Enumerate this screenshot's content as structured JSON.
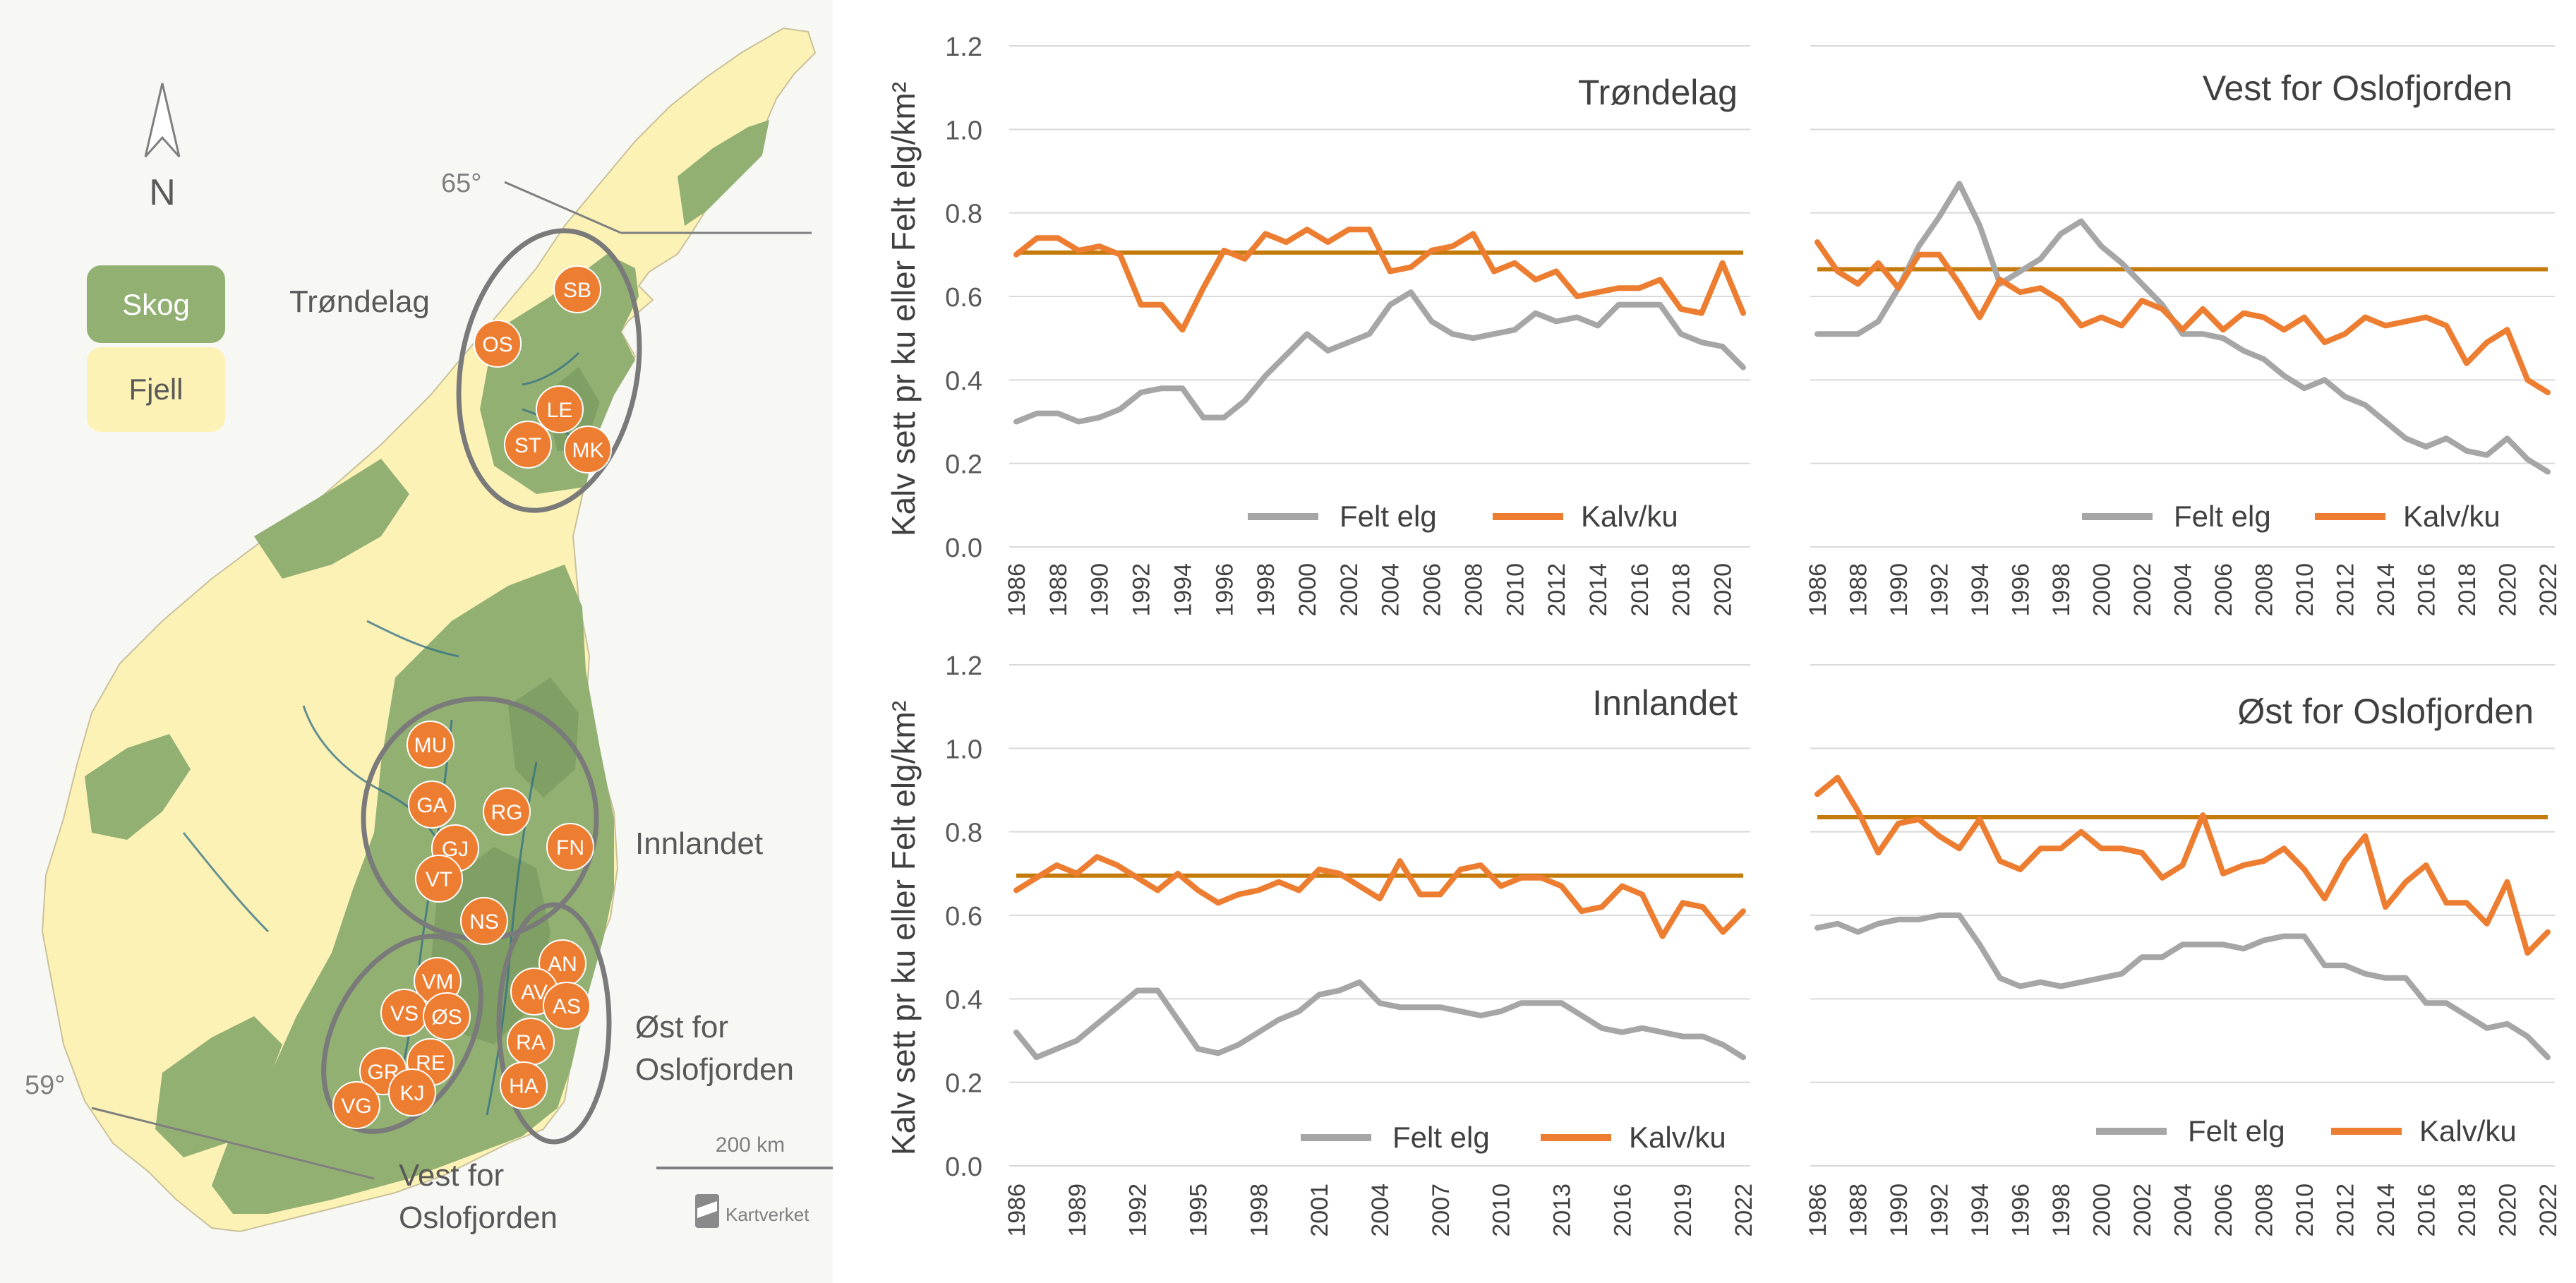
{
  "colors": {
    "felt": "#a6a6a6",
    "kalv": "#ed7d31",
    "ref": "#c57b0b",
    "forest": "#93b073",
    "forest_dark": "#6f9257",
    "mountain": "#fdf2b6",
    "marker": "#ed7d31",
    "ring": "#7a7a7a",
    "text": "#595959",
    "river": "#2f6f86"
  },
  "map": {
    "north_label": "N",
    "legend": [
      {
        "label": "Skog",
        "color": "#93b073"
      },
      {
        "label": "Fjell",
        "color": "#fdf2b6"
      }
    ],
    "lat_labels": [
      "65°",
      "59°"
    ],
    "region_labels": {
      "trondelag": "Trøndelag",
      "innlandet": "Innlandet",
      "ost": [
        "Øst for",
        "Oslofjorden"
      ],
      "vest": [
        "Vest for",
        "Oslofjorden"
      ]
    },
    "scale_label": "200 km",
    "credit": "Kartverket",
    "markers": [
      "SB",
      "OS",
      "LE",
      "ST",
      "MK",
      "MU",
      "GA",
      "RG",
      "GJ",
      "FN",
      "VT",
      "NS",
      "VM",
      "AN",
      "AV",
      "AS",
      "VS",
      "ØS",
      "RE",
      "GR",
      "KJ",
      "VG",
      "RA",
      "HA"
    ]
  },
  "chart_data": [
    {
      "type": "line",
      "id": "trondelag",
      "title": "Trøndelag",
      "ylabel": "Kalv sett pr ku eller Felt elg/km²",
      "ylim": [
        0,
        1.2
      ],
      "yticks": [
        "0.0",
        "0.2",
        "0.4",
        "0.6",
        "0.8",
        "1.0",
        "1.2"
      ],
      "xlim": [
        1986,
        2021
      ],
      "xticks": [
        "1986",
        "1988",
        "1990",
        "1992",
        "1994",
        "1996",
        "1998",
        "2000",
        "2002",
        "2004",
        "2006",
        "2008",
        "2010",
        "2012",
        "2014",
        "2016",
        "2018",
        "2020"
      ],
      "x": [
        1986,
        1987,
        1988,
        1989,
        1990,
        1991,
        1992,
        1993,
        1994,
        1995,
        1996,
        1997,
        1998,
        1999,
        2000,
        2001,
        2002,
        2003,
        2004,
        2005,
        2006,
        2007,
        2008,
        2009,
        2010,
        2011,
        2012,
        2013,
        2014,
        2015,
        2016,
        2017,
        2018,
        2019,
        2020,
        2021
      ],
      "reference": 0.705,
      "series": [
        {
          "name": "Felt elg",
          "values": [
            0.3,
            0.32,
            0.32,
            0.3,
            0.31,
            0.33,
            0.37,
            0.38,
            0.38,
            0.31,
            0.31,
            0.35,
            0.41,
            0.46,
            0.51,
            0.47,
            0.49,
            0.51,
            0.58,
            0.61,
            0.54,
            0.51,
            0.5,
            0.51,
            0.52,
            0.56,
            0.54,
            0.55,
            0.53,
            0.58,
            0.58,
            0.58,
            0.51,
            0.49,
            0.48,
            0.43
          ]
        },
        {
          "name": "Kalv/ku",
          "values": [
            0.7,
            0.74,
            0.74,
            0.71,
            0.72,
            0.7,
            0.58,
            0.58,
            0.52,
            0.62,
            0.71,
            0.69,
            0.75,
            0.73,
            0.76,
            0.73,
            0.76,
            0.76,
            0.66,
            0.67,
            0.71,
            0.72,
            0.75,
            0.66,
            0.68,
            0.64,
            0.66,
            0.6,
            0.61,
            0.62,
            0.62,
            0.64,
            0.57,
            0.56,
            0.68,
            0.56
          ]
        }
      ]
    },
    {
      "type": "line",
      "id": "vest",
      "title": "Vest for Oslofjorden",
      "ylim": [
        0,
        1.2
      ],
      "xlim": [
        1986,
        2022
      ],
      "xticks": [
        "1986",
        "1988",
        "1990",
        "1992",
        "1994",
        "1996",
        "1998",
        "2000",
        "2002",
        "2004",
        "2006",
        "2008",
        "2010",
        "2012",
        "2014",
        "2016",
        "2018",
        "2020",
        "2022"
      ],
      "x": [
        1986,
        1987,
        1988,
        1989,
        1990,
        1991,
        1992,
        1993,
        1994,
        1995,
        1996,
        1997,
        1998,
        1999,
        2000,
        2001,
        2002,
        2003,
        2004,
        2005,
        2006,
        2007,
        2008,
        2009,
        2010,
        2011,
        2012,
        2013,
        2014,
        2015,
        2016,
        2017,
        2018,
        2019,
        2020,
        2021,
        2022
      ],
      "reference": 0.665,
      "series": [
        {
          "name": "Felt elg",
          "values": [
            0.51,
            0.51,
            0.51,
            0.54,
            0.62,
            0.72,
            0.79,
            0.87,
            0.77,
            0.63,
            0.66,
            0.69,
            0.75,
            0.78,
            0.72,
            0.68,
            0.63,
            0.58,
            0.51,
            0.51,
            0.5,
            0.47,
            0.45,
            0.41,
            0.38,
            0.4,
            0.36,
            0.34,
            0.3,
            0.26,
            0.24,
            0.26,
            0.23,
            0.22,
            0.26,
            0.21,
            0.18
          ]
        },
        {
          "name": "Kalv/ku",
          "values": [
            0.73,
            0.66,
            0.63,
            0.68,
            0.62,
            0.7,
            0.7,
            0.63,
            0.55,
            0.64,
            0.61,
            0.62,
            0.59,
            0.53,
            0.55,
            0.53,
            0.59,
            0.57,
            0.52,
            0.57,
            0.52,
            0.56,
            0.55,
            0.52,
            0.55,
            0.49,
            0.51,
            0.55,
            0.53,
            0.54,
            0.55,
            0.53,
            0.44,
            0.49,
            0.52,
            0.4,
            0.37
          ]
        }
      ]
    },
    {
      "type": "line",
      "id": "innlandet",
      "title": "Innlandet",
      "ylabel": "Kalv sett pr ku eller Felt elg/km²",
      "ylim": [
        0,
        1.2
      ],
      "yticks": [
        "0.0",
        "0.2",
        "0.4",
        "0.6",
        "0.8",
        "1.0",
        "1.2"
      ],
      "xlim": [
        1986,
        2022
      ],
      "xticks": [
        "1986",
        "1989",
        "1992",
        "1995",
        "1998",
        "2001",
        "2004",
        "2007",
        "2010",
        "2013",
        "2016",
        "2019",
        "2022"
      ],
      "x": [
        1986,
        1987,
        1988,
        1989,
        1990,
        1991,
        1992,
        1993,
        1994,
        1995,
        1996,
        1997,
        1998,
        1999,
        2000,
        2001,
        2002,
        2003,
        2004,
        2005,
        2006,
        2007,
        2008,
        2009,
        2010,
        2011,
        2012,
        2013,
        2014,
        2015,
        2016,
        2017,
        2018,
        2019,
        2020,
        2021,
        2022
      ],
      "reference": 0.695,
      "series": [
        {
          "name": "Felt elg",
          "values": [
            0.32,
            0.26,
            0.28,
            0.3,
            0.34,
            0.38,
            0.42,
            0.42,
            0.35,
            0.28,
            0.27,
            0.29,
            0.32,
            0.35,
            0.37,
            0.41,
            0.42,
            0.44,
            0.39,
            0.38,
            0.38,
            0.38,
            0.37,
            0.36,
            0.37,
            0.39,
            0.39,
            0.39,
            0.36,
            0.33,
            0.32,
            0.33,
            0.32,
            0.31,
            0.31,
            0.29,
            0.26
          ]
        },
        {
          "name": "Kalv/ku",
          "values": [
            0.66,
            0.69,
            0.72,
            0.7,
            0.74,
            0.72,
            0.69,
            0.66,
            0.7,
            0.66,
            0.63,
            0.65,
            0.66,
            0.68,
            0.66,
            0.71,
            0.7,
            0.67,
            0.64,
            0.73,
            0.65,
            0.65,
            0.71,
            0.72,
            0.67,
            0.69,
            0.69,
            0.67,
            0.61,
            0.62,
            0.67,
            0.65,
            0.55,
            0.63,
            0.62,
            0.56,
            0.61
          ]
        }
      ]
    },
    {
      "type": "line",
      "id": "ost",
      "title": "Øst for Oslofjorden",
      "ylim": [
        0,
        1.2
      ],
      "xlim": [
        1986,
        2022
      ],
      "xticks": [
        "1986",
        "1988",
        "1990",
        "1992",
        "1994",
        "1996",
        "1998",
        "2000",
        "2002",
        "2004",
        "2006",
        "2008",
        "2010",
        "2012",
        "2014",
        "2016",
        "2018",
        "2020",
        "2022"
      ],
      "x": [
        1986,
        1987,
        1988,
        1989,
        1990,
        1991,
        1992,
        1993,
        1994,
        1995,
        1996,
        1997,
        1998,
        1999,
        2000,
        2001,
        2002,
        2003,
        2004,
        2005,
        2006,
        2007,
        2008,
        2009,
        2010,
        2011,
        2012,
        2013,
        2014,
        2015,
        2016,
        2017,
        2018,
        2019,
        2020,
        2021,
        2022
      ],
      "reference": 0.835,
      "series": [
        {
          "name": "Felt elg",
          "values": [
            0.57,
            0.58,
            0.56,
            0.58,
            0.59,
            0.59,
            0.6,
            0.6,
            0.53,
            0.45,
            0.43,
            0.44,
            0.43,
            0.44,
            0.45,
            0.46,
            0.5,
            0.5,
            0.53,
            0.53,
            0.53,
            0.52,
            0.54,
            0.55,
            0.55,
            0.48,
            0.48,
            0.46,
            0.45,
            0.45,
            0.39,
            0.39,
            0.36,
            0.33,
            0.34,
            0.31,
            0.26
          ]
        },
        {
          "name": "Kalv/ku",
          "values": [
            0.89,
            0.93,
            0.85,
            0.75,
            0.82,
            0.83,
            0.79,
            0.76,
            0.83,
            0.73,
            0.71,
            0.76,
            0.76,
            0.8,
            0.76,
            0.76,
            0.75,
            0.69,
            0.72,
            0.84,
            0.7,
            0.72,
            0.73,
            0.76,
            0.71,
            0.64,
            0.73,
            0.79,
            0.62,
            0.68,
            0.72,
            0.63,
            0.63,
            0.58,
            0.68,
            0.51,
            0.56
          ]
        }
      ]
    }
  ]
}
